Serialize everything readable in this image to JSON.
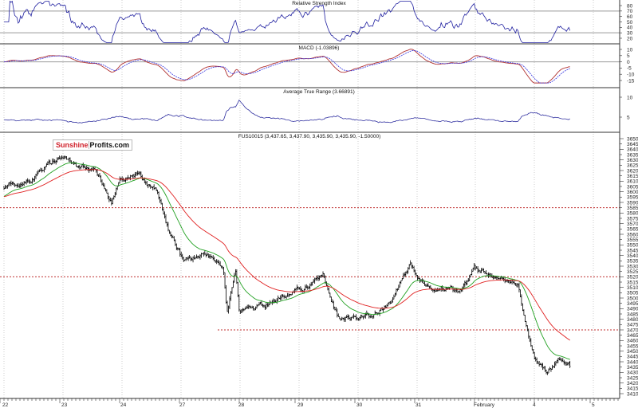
{
  "chart_data": [
    {
      "type": "line",
      "title": "Relative Strength Index",
      "y_ticks": [
        "80",
        "70",
        "60",
        "50",
        "40",
        "30",
        "20"
      ],
      "ylim": [
        10,
        90
      ],
      "reference_lines": [
        70,
        30
      ],
      "series_color": "#2020a0"
    },
    {
      "type": "line",
      "title": "MACD (-1.03896)",
      "y_ticks": [
        "10",
        "5",
        "0",
        "-5",
        "-10",
        "-15"
      ],
      "ylim": [
        -18,
        14
      ],
      "reference_lines": [
        0
      ],
      "series_colors": {
        "macd": "#b03030",
        "signal": "#3030e0"
      }
    },
    {
      "type": "line",
      "title": "Average True Range (3.66891)",
      "y_ticks": [
        "10",
        "5"
      ],
      "ylim": [
        2,
        12
      ],
      "series_color": "#3030a0"
    },
    {
      "type": "ohlc",
      "title": "FUS10015 (3,437.65, 3,437.90, 3,435.90, 3,435.90, -1.50000)",
      "ylim": [
        3405,
        3655
      ],
      "y_ticks": [
        "3650",
        "3645",
        "3640",
        "3635",
        "3630",
        "3625",
        "3620",
        "3615",
        "3610",
        "3605",
        "3600",
        "3595",
        "3590",
        "3585",
        "3580",
        "3575",
        "3570",
        "3565",
        "3560",
        "3555",
        "3550",
        "3545",
        "3540",
        "3535",
        "3530",
        "3525",
        "3520",
        "3515",
        "3510",
        "3505",
        "3500",
        "3495",
        "3490",
        "3485",
        "3480",
        "3475",
        "3470",
        "3465",
        "3460",
        "3455",
        "3450",
        "3445",
        "3440",
        "3435",
        "3430",
        "3425",
        "3420",
        "3415",
        "3410"
      ],
      "x_ticks": [
        "22",
        "23",
        "24",
        "27",
        "28",
        "29",
        "30",
        "31",
        "February",
        "4",
        "5"
      ],
      "x_unit": "trading sessions from start of 22",
      "price_path": [
        {
          "x": 0,
          "y": 3605
        },
        {
          "x": 0.47,
          "y": 3612
        },
        {
          "x": 1.01,
          "y": 3635
        },
        {
          "x": 1.28,
          "y": 3624
        },
        {
          "x": 1.55,
          "y": 3620
        },
        {
          "x": 1.82,
          "y": 3590
        },
        {
          "x": 1.96,
          "y": 3612
        },
        {
          "x": 2.3,
          "y": 3616
        },
        {
          "x": 2.57,
          "y": 3601
        },
        {
          "x": 2.7,
          "y": 3579
        },
        {
          "x": 2.84,
          "y": 3556
        },
        {
          "x": 3.04,
          "y": 3534
        },
        {
          "x": 3.45,
          "y": 3541
        },
        {
          "x": 3.72,
          "y": 3522
        },
        {
          "x": 3.78,
          "y": 3481
        },
        {
          "x": 3.92,
          "y": 3526
        },
        {
          "x": 3.99,
          "y": 3485
        },
        {
          "x": 4.39,
          "y": 3492
        },
        {
          "x": 4.66,
          "y": 3500
        },
        {
          "x": 5.07,
          "y": 3511
        },
        {
          "x": 5.41,
          "y": 3519
        },
        {
          "x": 5.68,
          "y": 3481
        },
        {
          "x": 5.95,
          "y": 3481
        },
        {
          "x": 6.28,
          "y": 3485
        },
        {
          "x": 6.55,
          "y": 3496
        },
        {
          "x": 6.69,
          "y": 3511
        },
        {
          "x": 6.89,
          "y": 3534
        },
        {
          "x": 7.09,
          "y": 3515
        },
        {
          "x": 7.5,
          "y": 3511
        },
        {
          "x": 7.7,
          "y": 3504
        },
        {
          "x": 7.97,
          "y": 3526
        },
        {
          "x": 8.45,
          "y": 3519
        },
        {
          "x": 8.72,
          "y": 3511
        },
        {
          "x": 8.85,
          "y": 3474
        },
        {
          "x": 8.99,
          "y": 3444
        },
        {
          "x": 9.19,
          "y": 3432
        },
        {
          "x": 9.39,
          "y": 3440
        },
        {
          "x": 9.59,
          "y": 3436
        }
      ],
      "last": {
        "open": 3437.65,
        "high": 3437.9,
        "low": 3435.9,
        "close": 3435.9,
        "change": -1.5
      },
      "horizontal_levels": [
        3585,
        3520,
        3470
      ],
      "level_color": "#c03030",
      "moving_averages": [
        {
          "color": "#20a020"
        },
        {
          "color": "#e02020"
        }
      ]
    }
  ],
  "logo": {
    "part1": "Sunshine",
    "part2": "Profits.com"
  }
}
